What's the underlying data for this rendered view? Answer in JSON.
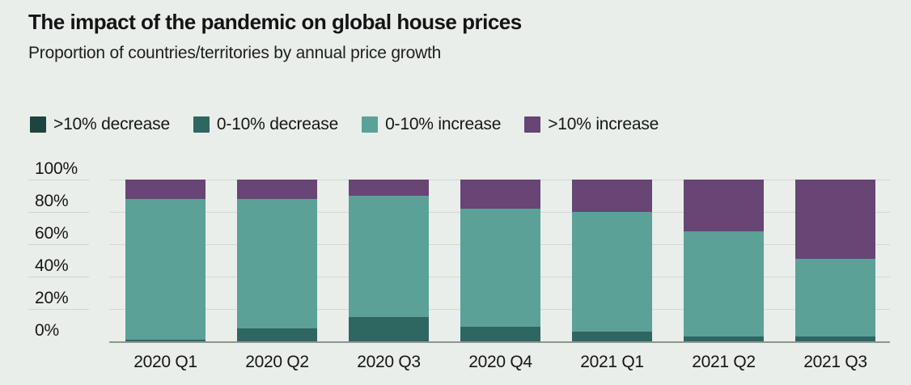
{
  "colors": {
    "background": "#e9eeea",
    "gridline": "#d3d8d3",
    "grid_stub": "#d0d5d0",
    "axis_line": "#8f948f",
    "text": "#161616"
  },
  "chart_data": {
    "type": "bar",
    "stacked": true,
    "title": "The impact of the pandemic on global house prices",
    "subtitle": "Proportion of countries/territories by annual price growth",
    "categories": [
      "2020 Q1",
      "2020 Q2",
      "2020 Q3",
      "2020 Q4",
      "2021 Q1",
      "2021 Q2",
      "2021 Q3"
    ],
    "series": [
      {
        "name": ">10% decrease",
        "color": "#1e443f",
        "values": [
          0,
          0,
          0,
          0,
          0,
          0,
          0
        ]
      },
      {
        "name": "0-10% decrease",
        "color": "#2e6662",
        "values": [
          1,
          8,
          15,
          9,
          6,
          3,
          3
        ]
      },
      {
        "name": "0-10% increase",
        "color": "#5ba197",
        "values": [
          87,
          80,
          75,
          73,
          74,
          65,
          48
        ]
      },
      {
        "name": ">10% increase",
        "color": "#674574",
        "values": [
          12,
          12,
          10,
          18,
          20,
          32,
          49
        ]
      }
    ],
    "xlabel": "",
    "ylabel": "",
    "unit": "%",
    "ylim": [
      0,
      100
    ],
    "yticks": [
      "100%",
      "80%",
      "60%",
      "40%",
      "20%",
      "0%"
    ],
    "grid": true,
    "legend_position": "top-left"
  }
}
